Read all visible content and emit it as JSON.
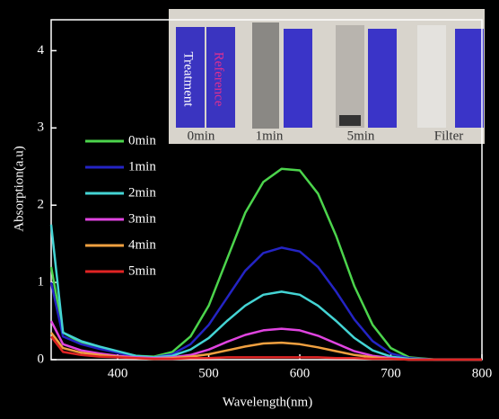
{
  "chart_data": {
    "type": "line",
    "xlabel": "Wavelength(nm)",
    "ylabel": "Absorption(a.u)",
    "x": [
      327,
      340,
      360,
      380,
      400,
      420,
      440,
      460,
      480,
      500,
      520,
      540,
      560,
      580,
      600,
      620,
      640,
      660,
      680,
      700,
      720,
      750,
      800
    ],
    "series": [
      {
        "name": "0min",
        "color": "#4cd44c",
        "values": [
          1.2,
          0.35,
          0.22,
          0.15,
          0.1,
          0.05,
          0.04,
          0.1,
          0.3,
          0.7,
          1.3,
          1.9,
          2.3,
          2.47,
          2.45,
          2.15,
          1.6,
          0.95,
          0.45,
          0.15,
          0.03,
          0,
          0
        ]
      },
      {
        "name": "1min",
        "color": "#2424c4",
        "values": [
          1.0,
          0.3,
          0.2,
          0.14,
          0.09,
          0.04,
          0.03,
          0.07,
          0.2,
          0.45,
          0.8,
          1.15,
          1.38,
          1.45,
          1.4,
          1.2,
          0.88,
          0.52,
          0.24,
          0.08,
          0.02,
          0,
          0
        ]
      },
      {
        "name": "2min",
        "color": "#44d4d4",
        "values": [
          1.75,
          0.35,
          0.24,
          0.17,
          0.11,
          0.05,
          0.03,
          0.05,
          0.13,
          0.28,
          0.5,
          0.7,
          0.84,
          0.88,
          0.84,
          0.7,
          0.5,
          0.28,
          0.12,
          0.04,
          0.01,
          0,
          0
        ]
      },
      {
        "name": "3min",
        "color": "#e044e0",
        "values": [
          0.5,
          0.2,
          0.12,
          0.08,
          0.05,
          0.03,
          0.02,
          0.03,
          0.06,
          0.13,
          0.23,
          0.32,
          0.38,
          0.4,
          0.38,
          0.31,
          0.21,
          0.11,
          0.05,
          0.02,
          0,
          0,
          0
        ]
      },
      {
        "name": "4min",
        "color": "#f0a040",
        "values": [
          0.35,
          0.15,
          0.09,
          0.06,
          0.04,
          0.02,
          0.01,
          0.02,
          0.04,
          0.07,
          0.12,
          0.17,
          0.21,
          0.22,
          0.2,
          0.16,
          0.11,
          0.06,
          0.03,
          0.01,
          0,
          0,
          0
        ]
      },
      {
        "name": "5min",
        "color": "#e02424",
        "values": [
          0.3,
          0.1,
          0.06,
          0.04,
          0.03,
          0.02,
          0.01,
          0.01,
          0.02,
          0.02,
          0.03,
          0.03,
          0.03,
          0.03,
          0.03,
          0.03,
          0.02,
          0.02,
          0.01,
          0.01,
          0,
          0,
          0
        ]
      }
    ],
    "xlim": [
      327,
      800
    ],
    "xticks": [
      400,
      500,
      600,
      700,
      800
    ],
    "ylim": [
      0,
      4.4
    ],
    "yticks": [
      0,
      1,
      2,
      3,
      4
    ],
    "inset_labels": [
      "Treatment",
      "Reference",
      "0min",
      "1min",
      "5min",
      "Filter"
    ]
  }
}
